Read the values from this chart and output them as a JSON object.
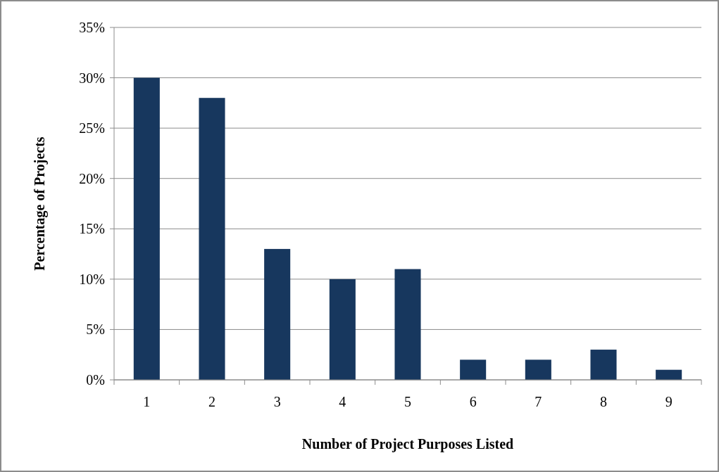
{
  "chart_data": {
    "type": "bar",
    "xlabel": "Number of Project Purposes Listed",
    "ylabel": "Percentage of Projects",
    "categories": [
      "1",
      "2",
      "3",
      "4",
      "5",
      "6",
      "7",
      "8",
      "9"
    ],
    "values": [
      30,
      28,
      13,
      10,
      11,
      2,
      2,
      3,
      1
    ],
    "color": "#17375e",
    "ylim": [
      0,
      35
    ],
    "yticks": [
      {
        "value": 0,
        "label": "0%"
      },
      {
        "value": 5,
        "label": "5%"
      },
      {
        "value": 10,
        "label": "10%"
      },
      {
        "value": 15,
        "label": "15%"
      },
      {
        "value": 20,
        "label": "20%"
      },
      {
        "value": 25,
        "label": "25%"
      },
      {
        "value": 30,
        "label": "30%"
      },
      {
        "value": 35,
        "label": "35%"
      }
    ],
    "grid": "y"
  }
}
